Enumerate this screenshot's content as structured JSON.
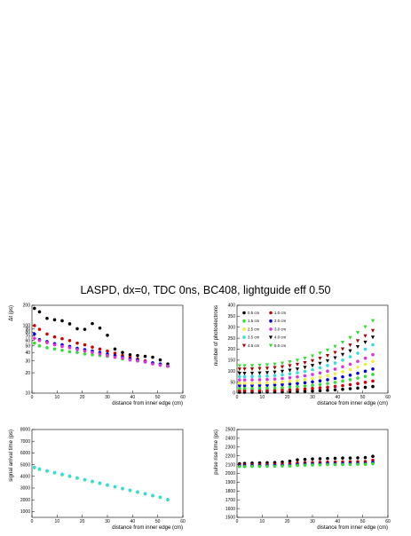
{
  "title": "LASPD, dx=0, TDC 0ns, BC408, lightguide eff 0.50",
  "colors": {
    "0.5 cm": "#000000",
    "1.0 cm": "#cc0000",
    "1.5 cm": "#33dd33",
    "2.0 cm": "#0000dd",
    "2.5 cm": "#eeee33",
    "3.0 cm": "#dd33dd",
    "3.5 cm": "#33dddd",
    "4.0 cm": "#000000",
    "4.5 cm": "#aa0000",
    "5.0 cm": "#33dd33"
  },
  "chart_data": [
    {
      "id": "dt",
      "type": "scatter",
      "xlabel": "distance from inner edge (cm)",
      "ylabel": "Δt  (ps)",
      "xlim": [
        0,
        60
      ],
      "ylim": [
        10,
        200
      ],
      "yscale": "log",
      "xticks": [
        0,
        10,
        20,
        30,
        40,
        50,
        60
      ],
      "yticks": [
        10,
        20,
        30,
        40,
        50,
        60,
        70,
        80,
        90,
        100,
        200
      ],
      "ytick_labels": [
        "10",
        "20",
        "30",
        "40",
        "50",
        "60",
        "70",
        "80",
        "90",
        "100",
        "200"
      ],
      "series": [
        {
          "key": "0.5 cm",
          "marker": "circle",
          "x": [
            1,
            3,
            6,
            9,
            12,
            15,
            18,
            21,
            24,
            27,
            30,
            33,
            36,
            39,
            42,
            45,
            48,
            51,
            54
          ],
          "y": [
            180,
            160,
            128,
            122,
            118,
            106,
            90,
            88,
            107,
            92,
            72,
            45,
            40,
            37,
            36,
            35,
            34,
            31,
            27
          ]
        },
        {
          "key": "1.0 cm",
          "marker": "circle",
          "x": [
            1,
            3,
            6,
            9,
            12,
            15,
            18,
            21,
            24,
            27,
            30,
            33,
            36,
            39,
            42,
            45,
            48,
            51,
            54
          ],
          "y": [
            100,
            88,
            75,
            68,
            64,
            60,
            55,
            52,
            48,
            45,
            42,
            39,
            36,
            34,
            32,
            30,
            28,
            26,
            25
          ]
        },
        {
          "key": "1.5 cm",
          "marker": "circle",
          "x": [
            1,
            3,
            6,
            9,
            12,
            15,
            18,
            21,
            24,
            27,
            30,
            33,
            36,
            39,
            42,
            45,
            48,
            51,
            54
          ],
          "y": [
            55,
            50,
            47,
            45,
            43,
            41,
            40,
            38,
            37,
            36,
            35,
            34,
            32,
            31,
            30,
            29,
            28,
            27,
            25
          ]
        },
        {
          "key": "2.0 cm",
          "marker": "circle",
          "x": [
            1,
            3,
            6,
            9,
            12,
            15,
            18,
            21,
            24,
            27,
            30,
            33,
            36,
            39,
            42,
            45,
            48,
            51,
            54
          ],
          "y": [
            75,
            62,
            58,
            54,
            52,
            49,
            46,
            44,
            42,
            40,
            38,
            36,
            34,
            32,
            31,
            29,
            28,
            27,
            25
          ]
        },
        {
          "key": "3.0 cm",
          "marker": "circle",
          "x": [
            1,
            3,
            6,
            9,
            12,
            15,
            18,
            21,
            24,
            27,
            30,
            33,
            36,
            39,
            42,
            45,
            48,
            51,
            54
          ],
          "y": [
            65,
            60,
            56,
            52,
            49,
            47,
            44,
            42,
            40,
            38,
            36,
            34,
            33,
            31,
            30,
            29,
            27,
            26,
            25
          ]
        }
      ]
    },
    {
      "id": "npe",
      "type": "scatter",
      "xlabel": "distance from inner edge (cm)",
      "ylabel": "number of photoelectrons",
      "xlim": [
        0,
        60
      ],
      "ylim": [
        0,
        400
      ],
      "xticks": [
        0,
        10,
        20,
        30,
        40,
        50,
        60
      ],
      "yticks": [
        0,
        50,
        100,
        150,
        200,
        250,
        300,
        350,
        400
      ],
      "legend": [
        "0.5 cm",
        "1.0 cm",
        "1.5 cm",
        "2.0 cm",
        "2.5 cm",
        "3.0 cm",
        "3.5 cm",
        "4.0 cm",
        "4.5 cm",
        "5.0 cm"
      ],
      "legend_position": "upper-left",
      "x": [
        1,
        3,
        6,
        9,
        12,
        15,
        18,
        21,
        24,
        27,
        30,
        33,
        36,
        39,
        42,
        45,
        48,
        51,
        54
      ],
      "series": [
        {
          "key": "0.5 cm",
          "marker": "circle",
          "y0": 4,
          "y1": 30
        },
        {
          "key": "1.0 cm",
          "marker": "circle",
          "y0": 12,
          "y1": 55
        },
        {
          "key": "1.5 cm",
          "marker": "circle",
          "y0": 22,
          "y1": 85
        },
        {
          "key": "2.0 cm",
          "marker": "circle",
          "y0": 35,
          "y1": 110
        },
        {
          "key": "2.5 cm",
          "marker": "circle",
          "y0": 45,
          "y1": 145
        },
        {
          "key": "3.0 cm",
          "marker": "circle",
          "y0": 60,
          "y1": 175
        },
        {
          "key": "3.5 cm",
          "marker": "circle",
          "y0": 75,
          "y1": 220
        },
        {
          "key": "4.0 cm",
          "marker": "triangle",
          "y0": 90,
          "y1": 255
        },
        {
          "key": "4.5 cm",
          "marker": "triangle",
          "y0": 110,
          "y1": 285
        },
        {
          "key": "5.0 cm",
          "marker": "triangle",
          "y0": 125,
          "y1": 330
        }
      ]
    },
    {
      "id": "arrival",
      "type": "scatter",
      "xlabel": "distance from inner edge (cm)",
      "ylabel": "signal arrival time (ps)",
      "xlim": [
        0,
        60
      ],
      "ylim": [
        500,
        8000
      ],
      "xticks": [
        0,
        10,
        20,
        30,
        40,
        50,
        60
      ],
      "yticks": [
        1000,
        2000,
        3000,
        4000,
        5000,
        6000,
        7000,
        8000
      ],
      "x": [
        1,
        3,
        6,
        9,
        12,
        15,
        18,
        21,
        24,
        27,
        30,
        33,
        36,
        39,
        42,
        45,
        48,
        51,
        54
      ],
      "y": [
        4750,
        4600,
        4450,
        4300,
        4150,
        4000,
        3850,
        3700,
        3550,
        3400,
        3250,
        3100,
        2950,
        2800,
        2650,
        2500,
        2350,
        2200,
        2000
      ],
      "series": [
        {
          "key": "1.5 cm",
          "marker": "circle",
          "offset": 0
        },
        {
          "key": "3.5 cm",
          "marker": "circle",
          "offset": 30
        }
      ]
    },
    {
      "id": "rise",
      "type": "scatter",
      "xlabel": "distance from inner edge (cm)",
      "ylabel": "pulse rise time (ps)",
      "xlim": [
        0,
        60
      ],
      "ylim": [
        1500,
        2500
      ],
      "xticks": [
        0,
        10,
        20,
        30,
        40,
        50,
        60
      ],
      "yticks": [
        1500,
        1600,
        1700,
        1800,
        1900,
        2000,
        2100,
        2200,
        2300,
        2400,
        2500
      ],
      "x": [
        1,
        3,
        6,
        9,
        12,
        15,
        18,
        21,
        24,
        27,
        30,
        33,
        36,
        39,
        42,
        45,
        48,
        51,
        54
      ],
      "series": [
        {
          "key": "0.5 cm",
          "marker": "circle",
          "y": [
            2110,
            2115,
            2118,
            2120,
            2122,
            2125,
            2130,
            2140,
            2155,
            2160,
            2165,
            2168,
            2170,
            2172,
            2175,
            2175,
            2178,
            2180,
            2195
          ]
        },
        {
          "key": "1.0 cm",
          "marker": "circle",
          "y": [
            2095,
            2098,
            2100,
            2100,
            2102,
            2104,
            2106,
            2110,
            2118,
            2122,
            2125,
            2127,
            2128,
            2130,
            2132,
            2133,
            2135,
            2136,
            2150
          ]
        },
        {
          "key": "2.0 cm",
          "marker": "circle",
          "y": [
            2085,
            2086,
            2088,
            2088,
            2090,
            2090,
            2092,
            2094,
            2100,
            2104,
            2106,
            2108,
            2110,
            2111,
            2112,
            2113,
            2114,
            2115,
            2125
          ]
        },
        {
          "key": "1.5 cm",
          "marker": "circle",
          "y": [
            2078,
            2078,
            2080,
            2080,
            2082,
            2082,
            2084,
            2085,
            2090,
            2094,
            2096,
            2098,
            2100,
            2100,
            2101,
            2102,
            2103,
            2104,
            2110
          ]
        }
      ]
    }
  ]
}
